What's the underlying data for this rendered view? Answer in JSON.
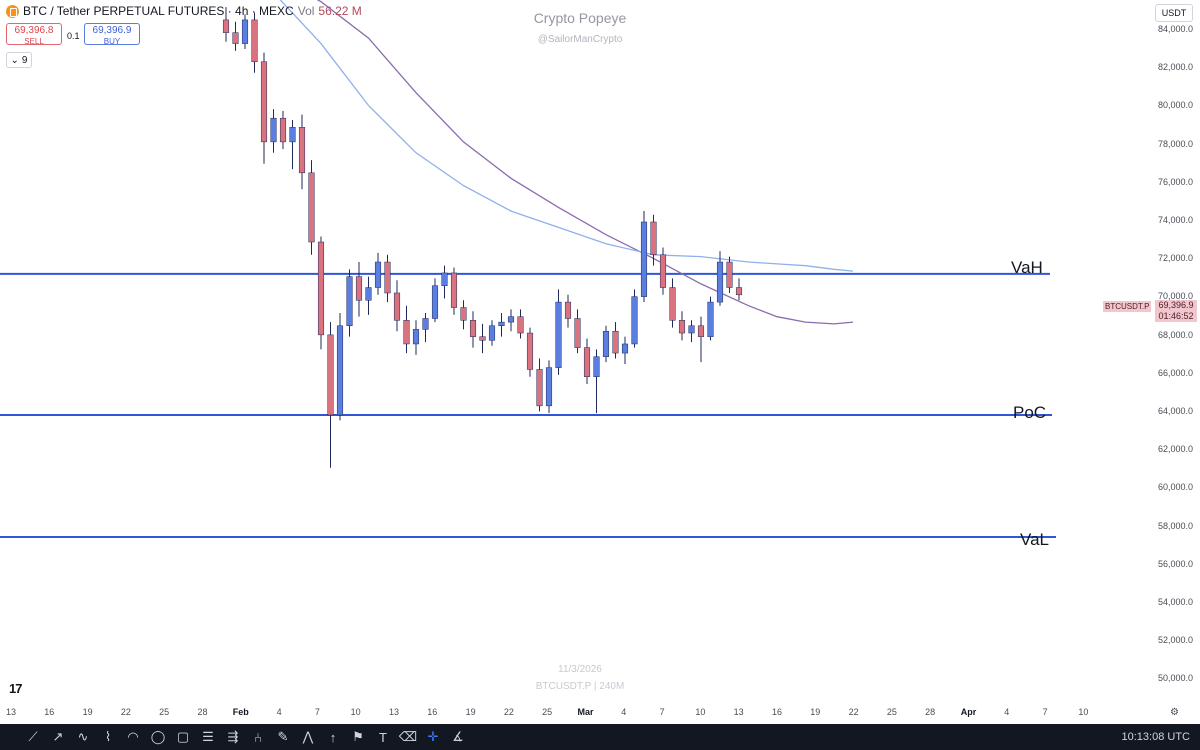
{
  "header": {
    "symbol_title": "BTC / Tether PERPETUAL FUTURES · 4h · MEXC",
    "vol_label": "Vol",
    "vol_value": "56.22 M",
    "sell_price": "69,396.8",
    "sell_label": "SELL",
    "spread": "0.1",
    "buy_price": "69,396.9",
    "buy_label": "BUY",
    "indicator_count": "9"
  },
  "watermark": {
    "title": "Crypto Popeye",
    "subtitle": "@SailorManCrypto",
    "date": "11/3/2026",
    "symbol": "BTCUSDT.P | 240M"
  },
  "price_axis": {
    "currency": "USDT",
    "labels": [
      "84,000.0",
      "82,000.0",
      "80,000.0",
      "78,000.0",
      "76,000.0",
      "74,000.0",
      "72,000.0",
      "70,000.0",
      "68,000.0",
      "66,000.0",
      "64,000.0",
      "62,000.0",
      "60,000.0",
      "58,000.0",
      "56,000.0",
      "54,000.0",
      "52,000.0",
      "50,000.0"
    ],
    "symbol_tag": "BTCUSDT.P",
    "last_price": "69,396.9",
    "countdown": "01:46:52"
  },
  "time_axis": {
    "labels": [
      {
        "text": "13",
        "bold": false
      },
      {
        "text": "16",
        "bold": false
      },
      {
        "text": "19",
        "bold": false
      },
      {
        "text": "22",
        "bold": false
      },
      {
        "text": "25",
        "bold": false
      },
      {
        "text": "28",
        "bold": false
      },
      {
        "text": "Feb",
        "bold": true
      },
      {
        "text": "4",
        "bold": false
      },
      {
        "text": "7",
        "bold": false
      },
      {
        "text": "10",
        "bold": false
      },
      {
        "text": "13",
        "bold": false
      },
      {
        "text": "16",
        "bold": false
      },
      {
        "text": "19",
        "bold": false
      },
      {
        "text": "22",
        "bold": false
      },
      {
        "text": "25",
        "bold": false
      },
      {
        "text": "Mar",
        "bold": true
      },
      {
        "text": "4",
        "bold": false
      },
      {
        "text": "7",
        "bold": false
      },
      {
        "text": "10",
        "bold": false
      },
      {
        "text": "13",
        "bold": false
      },
      {
        "text": "16",
        "bold": false
      },
      {
        "text": "19",
        "bold": false
      },
      {
        "text": "22",
        "bold": false
      },
      {
        "text": "25",
        "bold": false
      },
      {
        "text": "28",
        "bold": false
      },
      {
        "text": "Apr",
        "bold": true
      },
      {
        "text": "4",
        "bold": false
      },
      {
        "text": "7",
        "bold": false
      },
      {
        "text": "10",
        "bold": false
      }
    ]
  },
  "levels": [
    {
      "label": "VaH",
      "price": 70550
    },
    {
      "label": "PoC",
      "price": 62800
    },
    {
      "label": "VaL",
      "price": 56100
    }
  ],
  "chart_data": {
    "type": "candlestick",
    "timeframe": "4h",
    "ylim": [
      49000,
      85000
    ],
    "ma_series": [
      {
        "color": "#8b6bb0",
        "points": [
          [
            5,
            87000
          ],
          [
            10,
            85500
          ],
          [
            15,
            83500
          ],
          [
            20,
            80500
          ],
          [
            25,
            77800
          ],
          [
            30,
            75800
          ],
          [
            35,
            74200
          ],
          [
            40,
            72700
          ],
          [
            45,
            71400
          ],
          [
            50,
            70000
          ],
          [
            55,
            68800
          ],
          [
            58,
            68200
          ],
          [
            61,
            67900
          ],
          [
            64,
            67800
          ],
          [
            66,
            67900
          ]
        ]
      },
      {
        "color": "#8fb0ea",
        "points": [
          [
            5,
            86000
          ],
          [
            10,
            83200
          ],
          [
            15,
            79800
          ],
          [
            20,
            77200
          ],
          [
            25,
            75400
          ],
          [
            30,
            74000
          ],
          [
            35,
            73100
          ],
          [
            40,
            72200
          ],
          [
            45,
            71600
          ],
          [
            50,
            71500
          ],
          [
            55,
            71200
          ],
          [
            58,
            71100
          ],
          [
            61,
            71000
          ],
          [
            64,
            70800
          ],
          [
            66,
            70700
          ]
        ]
      }
    ],
    "candles": [
      [
        84500,
        85200,
        83300,
        83800
      ],
      [
        83800,
        84400,
        82800,
        83200
      ],
      [
        83200,
        84800,
        82900,
        84500
      ],
      [
        84500,
        84900,
        81600,
        82200
      ],
      [
        82200,
        82700,
        76600,
        77800
      ],
      [
        77800,
        79600,
        77200,
        79100
      ],
      [
        79100,
        79500,
        77400,
        77800
      ],
      [
        77800,
        79000,
        76300,
        78600
      ],
      [
        78600,
        79300,
        75200,
        76100
      ],
      [
        76100,
        76800,
        71600,
        72300
      ],
      [
        72300,
        72600,
        66400,
        67200
      ],
      [
        67200,
        67900,
        59900,
        62800
      ],
      [
        62800,
        68400,
        62500,
        67700
      ],
      [
        67700,
        70800,
        67100,
        70400
      ],
      [
        70400,
        71200,
        68200,
        69100
      ],
      [
        69100,
        70400,
        68300,
        69800
      ],
      [
        69800,
        71700,
        69400,
        71200
      ],
      [
        71200,
        71600,
        69000,
        69500
      ],
      [
        69500,
        70200,
        67400,
        68000
      ],
      [
        68000,
        68800,
        66200,
        66700
      ],
      [
        66700,
        68000,
        66100,
        67500
      ],
      [
        67500,
        68400,
        66800,
        68100
      ],
      [
        68100,
        70300,
        67900,
        69900
      ],
      [
        69900,
        71000,
        69200,
        70600
      ],
      [
        70600,
        70900,
        68300,
        68700
      ],
      [
        68700,
        69100,
        67500,
        68000
      ],
      [
        68000,
        68500,
        66500,
        67100
      ],
      [
        67100,
        67800,
        66200,
        66900
      ],
      [
        66900,
        68000,
        66600,
        67700
      ],
      [
        67700,
        68400,
        67100,
        67900
      ],
      [
        67900,
        68600,
        67400,
        68200
      ],
      [
        68200,
        68600,
        67000,
        67300
      ],
      [
        67300,
        67600,
        64900,
        65300
      ],
      [
        65300,
        65900,
        63000,
        63300
      ],
      [
        63300,
        65800,
        62900,
        65400
      ],
      [
        65400,
        69700,
        65000,
        69000
      ],
      [
        69000,
        69400,
        67600,
        68100
      ],
      [
        68100,
        68600,
        66200,
        66500
      ],
      [
        66500,
        67000,
        64500,
        64900
      ],
      [
        64900,
        66400,
        62900,
        66000
      ],
      [
        66000,
        67700,
        65700,
        67400
      ],
      [
        67400,
        67900,
        65900,
        66200
      ],
      [
        66200,
        67100,
        65600,
        66700
      ],
      [
        66700,
        69700,
        66500,
        69300
      ],
      [
        69300,
        74000,
        69000,
        73400
      ],
      [
        73400,
        73800,
        71000,
        71600
      ],
      [
        71600,
        72000,
        69400,
        69800
      ],
      [
        69800,
        70300,
        67600,
        68000
      ],
      [
        68000,
        68500,
        66900,
        67300
      ],
      [
        67300,
        68000,
        66800,
        67700
      ],
      [
        67700,
        68200,
        65700,
        67100
      ],
      [
        67100,
        69300,
        66900,
        69000
      ],
      [
        69000,
        71800,
        68800,
        71200
      ],
      [
        71200,
        71500,
        69500,
        69800
      ],
      [
        69800,
        70300,
        69100,
        69400
      ]
    ]
  },
  "toolbar": {
    "tools": [
      {
        "name": "trend-line-tool-icon",
        "glyph": "⟋"
      },
      {
        "name": "ray-tool-icon",
        "glyph": "↗"
      },
      {
        "name": "path-tool-icon",
        "glyph": "∿"
      },
      {
        "name": "polyline-tool-icon",
        "glyph": "⌇"
      },
      {
        "name": "curve-tool-icon",
        "glyph": "◠"
      },
      {
        "name": "circle-tool-icon",
        "glyph": "◯"
      },
      {
        "name": "rectangle-tool-icon",
        "glyph": "▢"
      },
      {
        "name": "fib-tool-icon",
        "glyph": "☰"
      },
      {
        "name": "channel-tool-icon",
        "glyph": "⇶"
      },
      {
        "name": "pitchfork-tool-icon",
        "glyph": "⑃"
      },
      {
        "name": "brush-tool-icon",
        "glyph": "✎"
      },
      {
        "name": "pattern-tool-icon",
        "glyph": "⋀"
      },
      {
        "name": "arrow-up-tool-icon",
        "glyph": "↑"
      },
      {
        "name": "flag-tool-icon",
        "glyph": "⚑"
      },
      {
        "name": "text-tool-icon",
        "glyph": "T"
      },
      {
        "name": "eraser-tool-icon",
        "glyph": "⌫"
      },
      {
        "name": "crosshair-tool-icon",
        "glyph": "✛"
      },
      {
        "name": "measure-tool-icon",
        "glyph": "∡"
      }
    ],
    "active_tool": "crosshair-tool-icon"
  },
  "status": {
    "utc_time": "10:13:08 UTC"
  },
  "colors": {
    "up_candle": "#5b7fe0",
    "down_candle": "#d9737f",
    "level_line": "#2f56d8",
    "background": "#ffffff"
  }
}
